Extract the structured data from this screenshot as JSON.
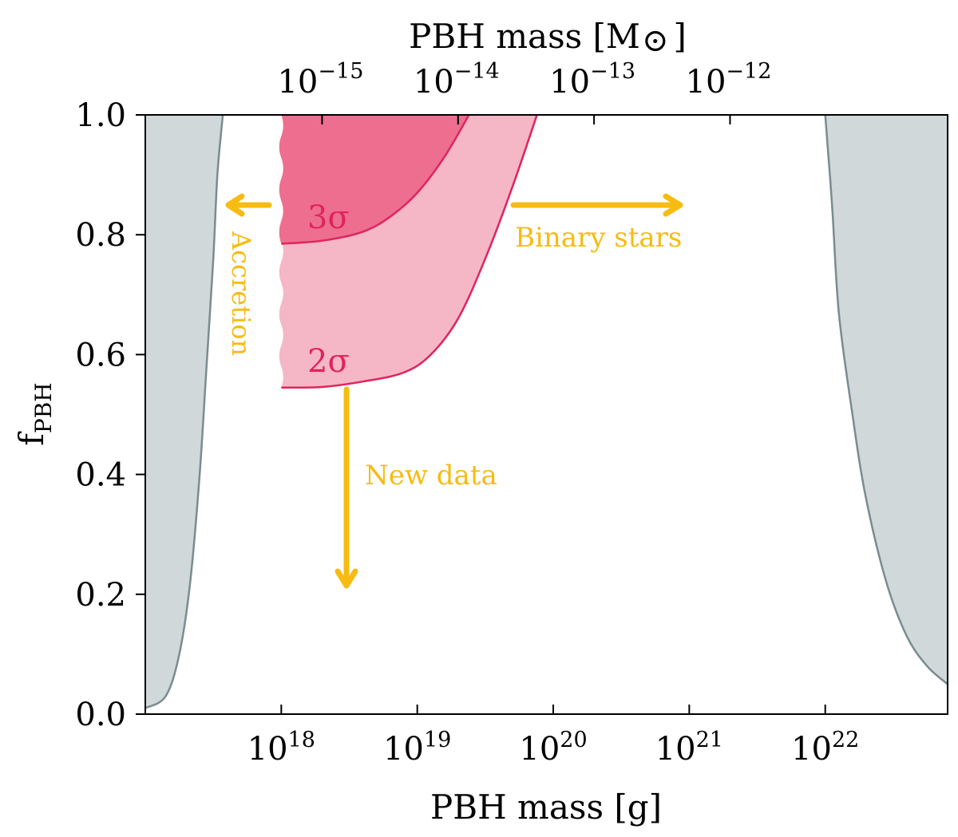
{
  "chart_data": {
    "type": "area",
    "title": "",
    "xlabel": "PBH mass [g]",
    "ylabel": "f",
    "ylabel_sub": "PBH",
    "top_xlabel": "PBH mass [M",
    "top_xlabel_symbol": "⊙",
    "top_xlabel_close": "]",
    "xscale": "log",
    "xlim_log10": [
      17.0,
      22.9
    ],
    "ylim": [
      0.0,
      1.0
    ],
    "grid": false,
    "x_ticks": [
      {
        "log10": 18,
        "base": "10",
        "exp": "18"
      },
      {
        "log10": 19,
        "base": "10",
        "exp": "19"
      },
      {
        "log10": 20,
        "base": "10",
        "exp": "20"
      },
      {
        "log10": 21,
        "base": "10",
        "exp": "21"
      },
      {
        "log10": 22,
        "base": "10",
        "exp": "22"
      }
    ],
    "top_x_ticks": [
      {
        "log10_g": 18.3,
        "base": "10",
        "exp": "−15"
      },
      {
        "log10_g": 19.3,
        "base": "10",
        "exp": "−14"
      },
      {
        "log10_g": 20.3,
        "base": "10",
        "exp": "−13"
      },
      {
        "log10_g": 21.3,
        "base": "10",
        "exp": "−12"
      }
    ],
    "y_ticks": [
      "0.0",
      "0.2",
      "0.4",
      "0.6",
      "0.8",
      "1.0"
    ],
    "excluded_regions": [
      {
        "name": "Low-mass exclusion",
        "color": "#d0d8da",
        "edge_color": "#7a8c8f",
        "boundary": [
          [
            17.0,
            0.01
          ],
          [
            17.15,
            0.03
          ],
          [
            17.25,
            0.1
          ],
          [
            17.33,
            0.22
          ],
          [
            17.4,
            0.4
          ],
          [
            17.45,
            0.58
          ],
          [
            17.5,
            0.76
          ],
          [
            17.53,
            0.9
          ],
          [
            17.57,
            1.0
          ]
        ]
      },
      {
        "name": "High-mass exclusion",
        "color": "#d0d8da",
        "edge_color": "#7a8c8f",
        "boundary": [
          [
            22.0,
            1.0
          ],
          [
            22.05,
            0.85
          ],
          [
            22.1,
            0.67
          ],
          [
            22.2,
            0.5
          ],
          [
            22.3,
            0.36
          ],
          [
            22.45,
            0.22
          ],
          [
            22.6,
            0.13
          ],
          [
            22.75,
            0.08
          ],
          [
            22.9,
            0.05
          ]
        ]
      }
    ],
    "series": [
      {
        "name": "2σ",
        "label": "2σ",
        "color": "#f5b6c6",
        "edge_color": "#e0245c",
        "x_range": [
          18.0,
          19.88
        ],
        "lower_boundary": [
          [
            18.0,
            0.545
          ],
          [
            18.3,
            0.546
          ],
          [
            18.6,
            0.555
          ],
          [
            18.9,
            0.57
          ],
          [
            19.1,
            0.6
          ],
          [
            19.3,
            0.66
          ],
          [
            19.5,
            0.76
          ],
          [
            19.7,
            0.88
          ],
          [
            19.88,
            1.0
          ]
        ]
      },
      {
        "name": "3σ",
        "label": "3σ",
        "color": "#ee6e8f",
        "edge_color": "#e0245c",
        "x_range": [
          18.0,
          19.38
        ],
        "lower_boundary": [
          [
            18.0,
            0.785
          ],
          [
            18.3,
            0.79
          ],
          [
            18.6,
            0.805
          ],
          [
            18.8,
            0.83
          ],
          [
            19.0,
            0.87
          ],
          [
            19.2,
            0.93
          ],
          [
            19.38,
            1.0
          ]
        ]
      }
    ],
    "annotations": [
      {
        "name": "accretion",
        "text": "Accretion",
        "direction": "left",
        "color": "#f7bb11"
      },
      {
        "name": "binary-stars",
        "text": "Binary stars",
        "direction": "right",
        "color": "#f7bb11"
      },
      {
        "name": "new-data",
        "text": "New data",
        "direction": "down",
        "color": "#f7bb11"
      }
    ]
  }
}
